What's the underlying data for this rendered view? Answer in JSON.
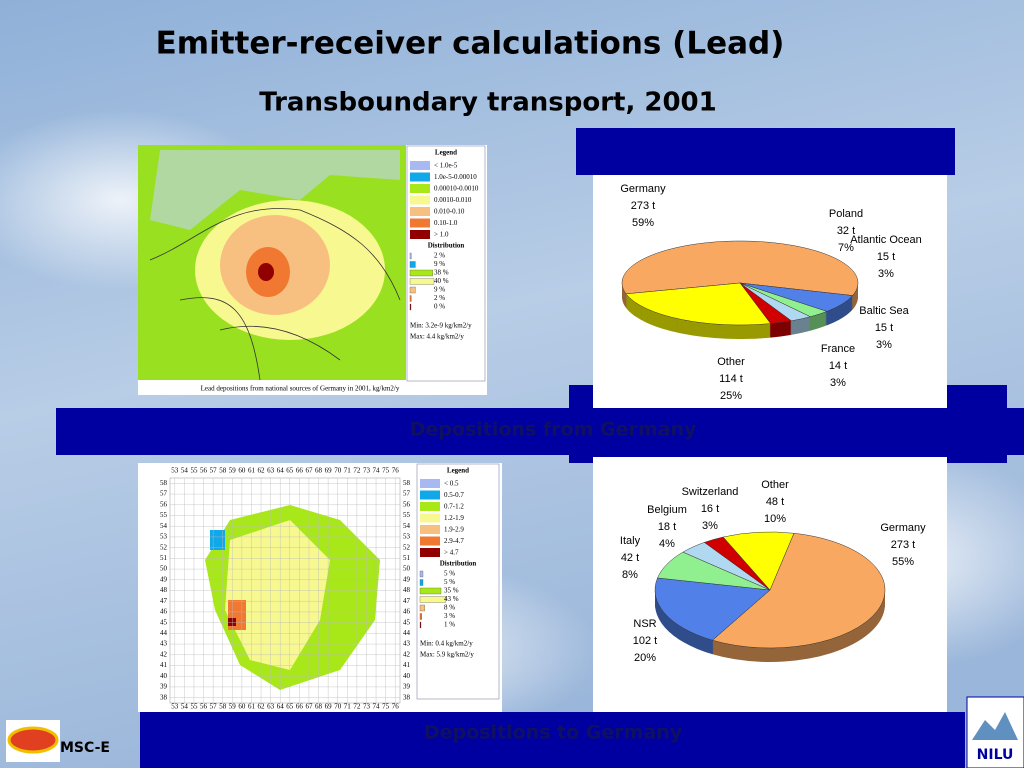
{
  "title": "Emitter-receiver calculations (Lead)",
  "subtitle": "Transboundary transport, 2001",
  "banner_from": "Depositions from Germany",
  "banner_to": "Depositions to Germany",
  "map_from": {
    "legend_title": "Legend",
    "ranges": [
      "< 1.0e-5",
      "1.0e-5-0.00010",
      "0.00010-0.0010",
      "0.0010-0.010",
      "0.010-0.10",
      "0.10-1.0",
      "> 1.0"
    ],
    "colors": [
      "#a8b8f0",
      "#10a8e8",
      "#a8e818",
      "#f8f890",
      "#f8c080",
      "#f07830",
      "#900000"
    ],
    "distribution_title": "Distribution",
    "distribution": [
      2,
      9,
      38,
      40,
      9,
      2,
      0
    ],
    "distribution_labels": [
      "2 %",
      "9 %",
      "38 %",
      "40 %",
      "9 %",
      "2 %",
      "0 %"
    ],
    "min": "Min: 3.2e-9 kg/km2/y",
    "max": "Max: 4.4 kg/km2/y",
    "caption": "Lead depositions from national sources of Germany in 2001, kg/km2/y"
  },
  "map_to": {
    "legend_title": "Legend",
    "ranges": [
      "< 0.5",
      "0.5-0.7",
      "0.7-1.2",
      "1.2-1.9",
      "1.9-2.9",
      "2.9-4.7",
      "> 4.7"
    ],
    "colors": [
      "#a8b8f0",
      "#10a8e8",
      "#a8e818",
      "#f8f890",
      "#f8c080",
      "#f07830",
      "#900000"
    ],
    "distribution_title": "Distribution",
    "distribution": [
      5,
      5,
      35,
      43,
      8,
      3,
      1
    ],
    "distribution_labels": [
      "5 %",
      "5 %",
      "35 %",
      "43 %",
      "8 %",
      "3 %",
      "1 %"
    ],
    "min": "Min: 0.4 kg/km2/y",
    "max": "Max: 5.9 kg/km2/y",
    "xticks": [
      53,
      54,
      55,
      56,
      57,
      58,
      59,
      60,
      61,
      62,
      63,
      64,
      65,
      66,
      67,
      68,
      69,
      70,
      71,
      72,
      73,
      74,
      75,
      76
    ],
    "yticks": [
      58,
      57,
      56,
      55,
      54,
      53,
      52,
      51,
      50,
      49,
      48,
      47,
      46,
      45,
      44,
      43,
      42,
      41,
      40,
      39,
      38
    ]
  },
  "pie_from": {
    "type": "pie",
    "categories": [
      "Germany",
      "Poland",
      "Atlantic Ocean",
      "Baltic Sea",
      "France",
      "Other"
    ],
    "amounts": [
      "273 t",
      "32 t",
      "15 t",
      "15 t",
      "14 t",
      "114 t"
    ],
    "values": [
      59,
      7,
      3,
      3,
      3,
      25
    ],
    "value_labels": [
      "59%",
      "7%",
      "3%",
      "3%",
      "3%",
      "25%"
    ],
    "colors": [
      "#f8a860",
      "#5080e8",
      "#90f090",
      "#b0d8f0",
      "#d00000",
      "#ffff00"
    ]
  },
  "pie_to": {
    "type": "pie",
    "categories": [
      "Germany",
      "NSR",
      "Italy",
      "Belgium",
      "Switzerland",
      "Other"
    ],
    "amounts": [
      "273 t",
      "102 t",
      "42 t",
      "18 t",
      "16 t",
      "48 t"
    ],
    "values": [
      55,
      20,
      8,
      4,
      3,
      10
    ],
    "value_labels": [
      "55%",
      "20%",
      "8%",
      "4%",
      "3%",
      "10%"
    ],
    "colors": [
      "#f8a860",
      "#5080e8",
      "#90f090",
      "#b0d8f0",
      "#d00000",
      "#ffff00"
    ]
  },
  "footer_left": "MSC-E",
  "footer_right": "NILU"
}
